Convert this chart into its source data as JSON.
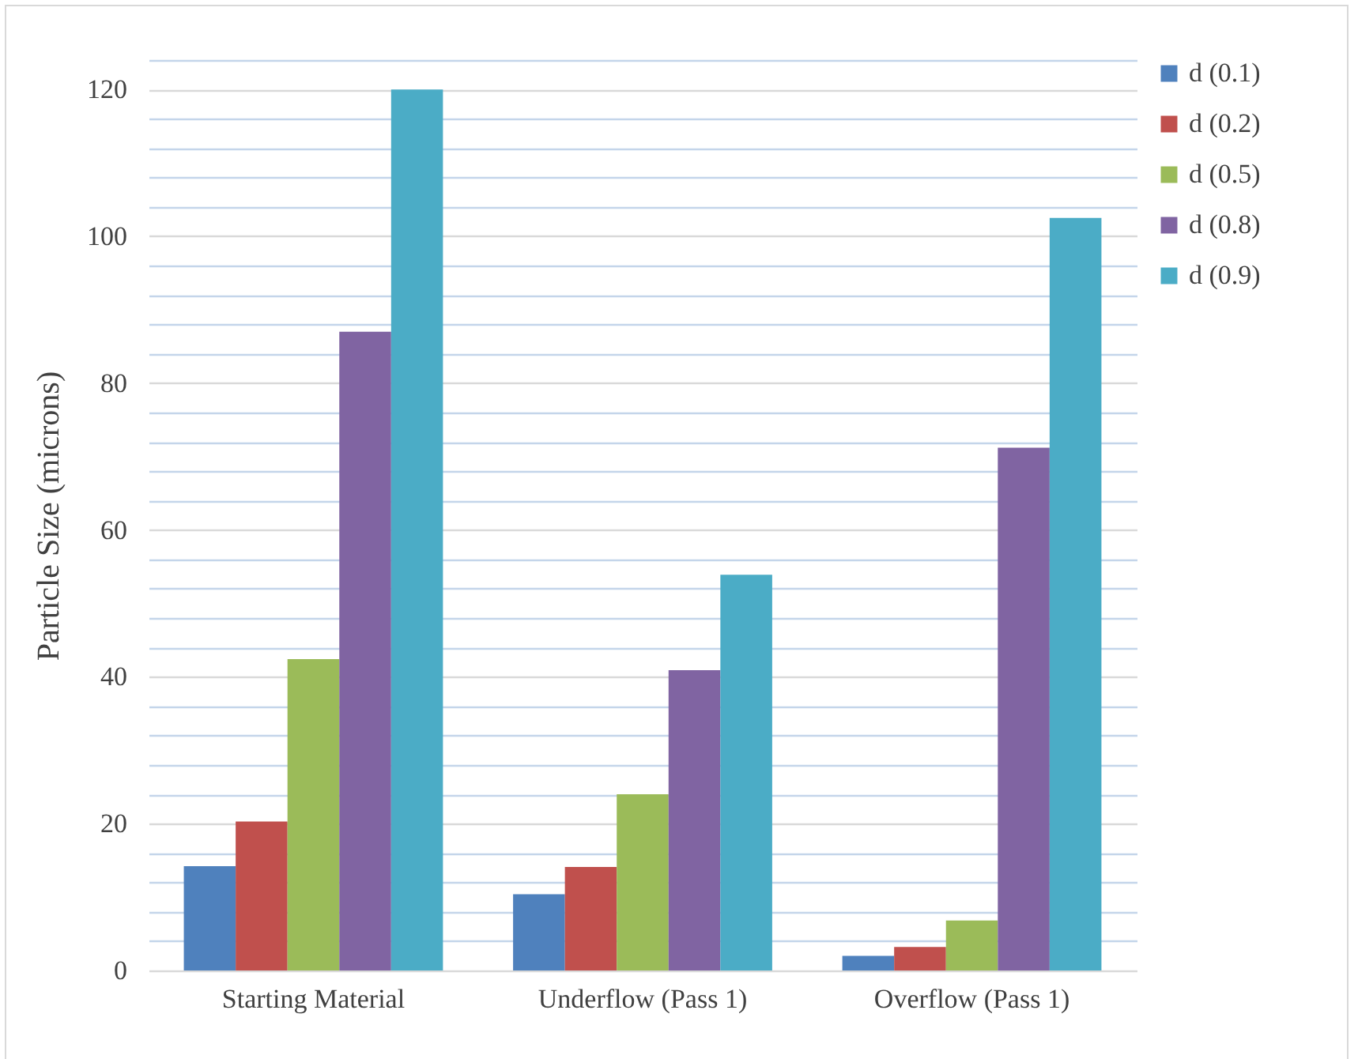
{
  "chart_data": {
    "type": "bar",
    "ylabel": "Particle Size (microns)",
    "categories": [
      "Starting Material",
      "Underflow (Pass 1)",
      "Overflow (Pass 1)"
    ],
    "series": [
      {
        "name": "d (0.1)",
        "color": "#4f81bd",
        "values": [
          14.2,
          10.4,
          2.0
        ]
      },
      {
        "name": "d (0.2)",
        "color": "#c0504d",
        "values": [
          20.3,
          14.1,
          3.2
        ]
      },
      {
        "name": "d (0.5)",
        "color": "#9bbb59",
        "values": [
          42.4,
          24.0,
          6.8
        ]
      },
      {
        "name": "d (0.8)",
        "color": "#8064a2",
        "values": [
          87,
          40.9,
          71.2
        ]
      },
      {
        "name": "d (0.9)",
        "color": "#4bacc6",
        "values": [
          120,
          53.9,
          102.5
        ]
      }
    ],
    "ylim": [
      0,
      124
    ],
    "yticks": [
      0,
      {
        "value": 4,
        "label": null
      },
      {
        "value": 8,
        "label": null
      },
      {
        "value": 12,
        "label": null
      },
      {
        "value": 16,
        "label": null
      },
      20,
      {
        "value": 24,
        "label": null
      },
      {
        "value": 28,
        "label": null
      },
      {
        "value": 32,
        "label": null
      },
      {
        "value": 36,
        "label": null
      },
      40,
      {
        "value": 44,
        "label": null
      },
      {
        "value": 48,
        "label": null
      },
      {
        "value": 52,
        "label": null
      },
      {
        "value": 56,
        "label": null
      },
      60,
      {
        "value": 64,
        "label": null
      },
      {
        "value": 68,
        "label": null
      },
      {
        "value": 72,
        "label": null
      },
      {
        "value": 76,
        "label": null
      },
      80,
      {
        "value": 84,
        "label": null
      },
      {
        "value": 88,
        "label": null
      },
      {
        "value": 92,
        "label": null
      },
      {
        "value": 96,
        "label": null
      },
      100,
      {
        "value": 104,
        "label": null
      },
      {
        "value": 108,
        "label": null
      },
      {
        "value": 112,
        "label": null
      },
      {
        "value": 116,
        "label": null
      },
      120,
      {
        "value": 124,
        "label": null
      }
    ],
    "grid": true,
    "legend": "right"
  }
}
